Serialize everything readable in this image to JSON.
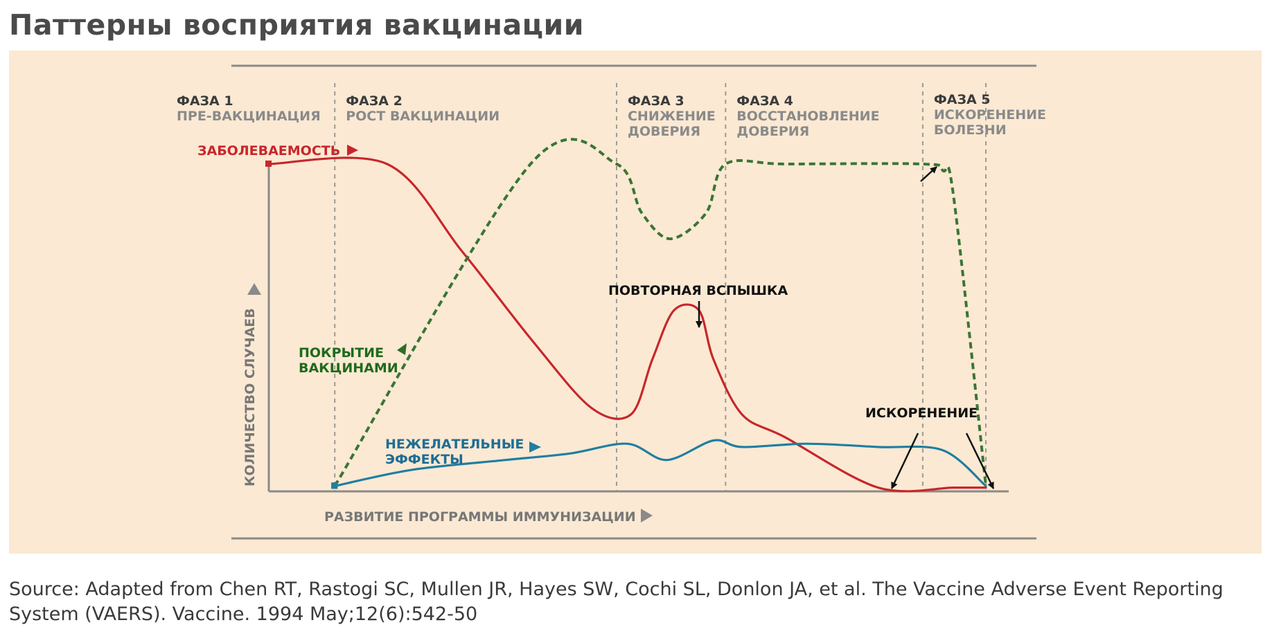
{
  "title": "Паттерны восприятия вакцинации",
  "source": "Source: Adapted from Chen RT, Rastogi SC, Mullen JR, Hayes SW, Cochi SL, Donlon JA, et al. The Vaccine Adverse Event Reporting System (VAERS). Vaccine. 1994 May;12(6):542-50",
  "chart_data": {
    "type": "line",
    "title": "Паттерны восприятия вакцинации",
    "xlabel": "РАЗВИТИЕ ПРОГРАММЫ ИММУНИЗАЦИИ",
    "ylabel": "КОЛИЧЕСТВО СЛУЧАЕВ",
    "xlim": [
      0,
      100
    ],
    "ylim": [
      0,
      100
    ],
    "phase_boundaries": [
      9.2,
      48.5,
      63.7,
      91.2,
      100
    ],
    "phases": [
      {
        "number": "ФАЗА 1",
        "name_lines": [
          "ПРЕ-ВАКЦИНАЦИЯ"
        ]
      },
      {
        "number": "ФАЗА 2",
        "name_lines": [
          "РОСТ ВАКЦИНАЦИИ"
        ]
      },
      {
        "number": "ФАЗА 3",
        "name_lines": [
          "СНИЖЕНИЕ",
          "ДОВЕРИЯ"
        ]
      },
      {
        "number": "ФАЗА 4",
        "name_lines": [
          "ВОССТАНОВЛЕНИЕ",
          "ДОВЕРИЯ"
        ]
      },
      {
        "number": "ФАЗА 5",
        "name_lines": [
          "ИСКОРЕНЕНИЕ",
          "БОЛЕЗНИ"
        ]
      }
    ],
    "series": [
      {
        "name": "ЗАБОЛЕВАЕМОСТЬ",
        "color": "#c8262c",
        "style": "solid",
        "x": [
          0,
          16.5,
          27,
          37,
          45,
          50.5,
          53.5,
          56.5,
          60,
          62,
          66,
          72,
          85,
          95.5,
          100
        ],
        "y": [
          100,
          100,
          73,
          45,
          25,
          23,
          40,
          55,
          55,
          40,
          23,
          16,
          0.5,
          0.5,
          0.5
        ]
      },
      {
        "name_lines": [
          "ПОКРЫТИЕ",
          "ВАКЦИНАМИ"
        ],
        "color": "#3a7535",
        "style": "dashed",
        "x": [
          9.2,
          36.5,
          48.5,
          52,
          56,
          61,
          63.7,
          72,
          91.2,
          94,
          95.5,
          100
        ],
        "y": [
          1,
          100,
          100,
          85,
          77,
          85,
          100,
          100,
          100,
          98,
          90,
          1
        ]
      },
      {
        "name_lines": [
          "НЕЖЕЛАТЕЛЬНЫЕ",
          "ЭФФЕКТЫ"
        ],
        "color": "#1f7ea1",
        "style": "solid",
        "x": [
          9.2,
          20,
          33,
          42,
          50,
          55.5,
          62,
          66,
          75,
          85,
          94,
          100
        ],
        "y": [
          1,
          6,
          9,
          11,
          14,
          9,
          15,
          13,
          14,
          13,
          12,
          1
        ]
      }
    ],
    "annotations": [
      {
        "text": "ПОВТОРНАЯ ВСПЫШКА"
      },
      {
        "text": "ИСКОРЕНЕНИЕ"
      }
    ]
  }
}
